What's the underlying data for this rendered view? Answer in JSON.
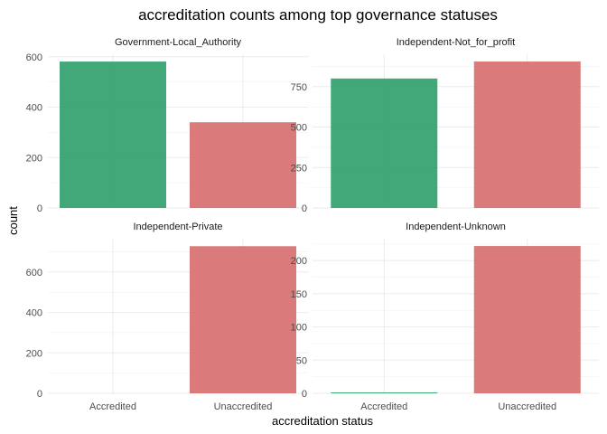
{
  "chart_data": {
    "type": "bar",
    "title": "accreditation counts among top governance statuses",
    "xlabel": "accreditation status",
    "ylabel": "count",
    "categories": [
      "Accredited",
      "Unaccredited"
    ],
    "colors": {
      "Accredited": "#2e9e6b",
      "Unaccredited": "#d66b6b"
    },
    "grid": true,
    "facets": [
      {
        "name": "Government-Local_Authority",
        "values": [
          581,
          340
        ],
        "ylim": [
          0,
          610
        ],
        "yticks": [
          0,
          200,
          400,
          600
        ]
      },
      {
        "name": "Independent-Not_for_profit",
        "values": [
          800,
          905
        ],
        "ylim": [
          0,
          950
        ],
        "yticks": [
          0,
          250,
          500,
          750
        ]
      },
      {
        "name": "Independent-Private",
        "values": [
          0,
          728
        ],
        "ylim": [
          0,
          765
        ],
        "yticks": [
          0,
          200,
          400,
          600
        ]
      },
      {
        "name": "Independent-Unknown",
        "values": [
          1,
          222
        ],
        "ylim": [
          0,
          233
        ],
        "yticks": [
          0,
          50,
          100,
          150,
          200
        ]
      }
    ]
  }
}
